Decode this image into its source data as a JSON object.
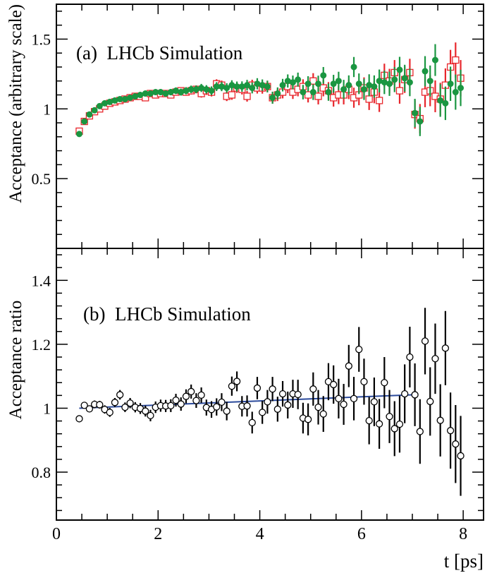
{
  "figure": {
    "xlabel": "t [ps]",
    "x_ticks": [
      0,
      2,
      4,
      6,
      8
    ]
  },
  "chart_data": [
    {
      "type": "scatter",
      "panel_label": "(a)  LHCb Simulation",
      "ylabel": "Acceptance (arbitrary scale)",
      "xlabel": "t [ps]",
      "xlim": [
        0,
        8.4
      ],
      "ylim": [
        0,
        1.75
      ],
      "y_ticks": [
        0.5,
        1,
        1.5
      ],
      "y_tick_labels": [
        "0.5",
        "1",
        "1.5"
      ],
      "colors": {
        "open_squares": "#e8262c",
        "filled_circles": "#1a9641"
      },
      "series": [
        {
          "marker": "open-square",
          "x": [
            0.45,
            0.55,
            0.65,
            0.75,
            0.85,
            0.95,
            1.05,
            1.15,
            1.25,
            1.35,
            1.45,
            1.55,
            1.65,
            1.75,
            1.85,
            1.95,
            2.05,
            2.15,
            2.25,
            2.35,
            2.45,
            2.55,
            2.65,
            2.75,
            2.85,
            2.95,
            3.05,
            3.15,
            3.25,
            3.35,
            3.45,
            3.55,
            3.65,
            3.75,
            3.85,
            3.95,
            4.05,
            4.15,
            4.25,
            4.35,
            4.45,
            4.55,
            4.65,
            4.75,
            4.85,
            4.95,
            5.05,
            5.15,
            5.25,
            5.35,
            5.45,
            5.55,
            5.65,
            5.75,
            5.85,
            5.95,
            6.05,
            6.15,
            6.25,
            6.35,
            6.45,
            6.55,
            6.65,
            6.75,
            6.85,
            6.95,
            7.05,
            7.15,
            7.25,
            7.35,
            7.45,
            7.55,
            7.65,
            7.75,
            7.85,
            7.95
          ],
          "y": [
            0.84,
            0.91,
            0.95,
            0.98,
            1.0,
            1.02,
            1.04,
            1.05,
            1.06,
            1.07,
            1.08,
            1.09,
            1.09,
            1.08,
            1.11,
            1.1,
            1.11,
            1.11,
            1.1,
            1.12,
            1.13,
            1.12,
            1.13,
            1.14,
            1.11,
            1.13,
            1.12,
            1.18,
            1.17,
            1.09,
            1.1,
            1.15,
            1.14,
            1.09,
            1.17,
            1.15,
            1.15,
            1.16,
            1.08,
            1.1,
            1.12,
            1.16,
            1.12,
            1.14,
            1.16,
            1.1,
            1.2,
            1.09,
            1.15,
            1.13,
            1.08,
            1.1,
            1.1,
            1.14,
            1.08,
            1.1,
            1.15,
            1.07,
            1.12,
            1.06,
            1.24,
            1.2,
            1.26,
            1.13,
            1.21,
            1.26,
            0.96,
            0.93,
            1.12,
            1.13,
            1.09,
            1.07,
            1.17,
            1.3,
            1.35,
            1.22
          ],
          "yerr": [
            0.005,
            0.006,
            0.007,
            0.008,
            0.009,
            0.01,
            0.011,
            0.012,
            0.013,
            0.014,
            0.015,
            0.016,
            0.017,
            0.018,
            0.019,
            0.02,
            0.021,
            0.022,
            0.023,
            0.024,
            0.025,
            0.026,
            0.027,
            0.028,
            0.029,
            0.03,
            0.031,
            0.032,
            0.033,
            0.034,
            0.035,
            0.036,
            0.037,
            0.038,
            0.039,
            0.04,
            0.041,
            0.042,
            0.043,
            0.044,
            0.045,
            0.047,
            0.049,
            0.05,
            0.052,
            0.054,
            0.056,
            0.058,
            0.06,
            0.062,
            0.064,
            0.066,
            0.068,
            0.07,
            0.072,
            0.074,
            0.076,
            0.078,
            0.08,
            0.082,
            0.084,
            0.087,
            0.09,
            0.093,
            0.096,
            0.099,
            0.102,
            0.105,
            0.108,
            0.111,
            0.114,
            0.117,
            0.12,
            0.123,
            0.126,
            0.13
          ]
        },
        {
          "marker": "filled-circle",
          "x": [
            0.45,
            0.55,
            0.65,
            0.75,
            0.85,
            0.95,
            1.05,
            1.15,
            1.25,
            1.35,
            1.45,
            1.55,
            1.65,
            1.75,
            1.85,
            1.95,
            2.05,
            2.15,
            2.25,
            2.35,
            2.45,
            2.55,
            2.65,
            2.75,
            2.85,
            2.95,
            3.05,
            3.15,
            3.25,
            3.35,
            3.45,
            3.55,
            3.65,
            3.75,
            3.85,
            3.95,
            4.05,
            4.15,
            4.25,
            4.35,
            4.45,
            4.55,
            4.65,
            4.75,
            4.85,
            4.95,
            5.05,
            5.15,
            5.25,
            5.35,
            5.45,
            5.55,
            5.65,
            5.75,
            5.85,
            5.95,
            6.05,
            6.15,
            6.25,
            6.35,
            6.45,
            6.55,
            6.65,
            6.75,
            6.85,
            6.95,
            7.05,
            7.15,
            7.25,
            7.35,
            7.45,
            7.55,
            7.65,
            7.75,
            7.85,
            7.95
          ],
          "y": [
            0.82,
            0.91,
            0.96,
            0.99,
            1.02,
            1.04,
            1.05,
            1.06,
            1.07,
            1.07,
            1.08,
            1.09,
            1.1,
            1.11,
            1.11,
            1.12,
            1.12,
            1.11,
            1.12,
            1.13,
            1.12,
            1.13,
            1.14,
            1.14,
            1.15,
            1.14,
            1.13,
            1.16,
            1.16,
            1.15,
            1.17,
            1.16,
            1.16,
            1.17,
            1.15,
            1.18,
            1.17,
            1.16,
            1.08,
            1.11,
            1.17,
            1.2,
            1.19,
            1.21,
            1.12,
            1.18,
            1.12,
            1.18,
            1.24,
            1.12,
            1.18,
            1.2,
            1.14,
            1.17,
            1.3,
            1.18,
            1.14,
            1.17,
            1.16,
            1.2,
            1.19,
            1.18,
            1.21,
            1.28,
            1.22,
            1.19,
            0.97,
            0.91,
            1.27,
            1.2,
            1.35,
            1.06,
            1.04,
            1.18,
            1.12,
            1.15
          ],
          "yerr": [
            0.005,
            0.006,
            0.007,
            0.008,
            0.009,
            0.01,
            0.011,
            0.012,
            0.013,
            0.014,
            0.015,
            0.016,
            0.017,
            0.018,
            0.019,
            0.02,
            0.021,
            0.022,
            0.023,
            0.024,
            0.025,
            0.026,
            0.027,
            0.028,
            0.029,
            0.03,
            0.031,
            0.032,
            0.033,
            0.034,
            0.035,
            0.036,
            0.037,
            0.038,
            0.039,
            0.04,
            0.041,
            0.042,
            0.043,
            0.044,
            0.045,
            0.047,
            0.049,
            0.05,
            0.052,
            0.054,
            0.056,
            0.058,
            0.06,
            0.062,
            0.064,
            0.066,
            0.068,
            0.07,
            0.072,
            0.074,
            0.076,
            0.078,
            0.08,
            0.082,
            0.084,
            0.087,
            0.09,
            0.093,
            0.096,
            0.099,
            0.102,
            0.105,
            0.108,
            0.111,
            0.114,
            0.117,
            0.12,
            0.123,
            0.126,
            0.13
          ]
        }
      ]
    },
    {
      "type": "scatter",
      "panel_label": "(b)  LHCb Simulation",
      "ylabel": "Acceptance ratio",
      "xlabel": "t [ps]",
      "xlim": [
        0,
        8.4
      ],
      "ylim": [
        0.65,
        1.5
      ],
      "y_ticks": [
        0.8,
        1,
        1.2,
        1.4
      ],
      "y_tick_labels": [
        "0.8",
        "1",
        "1.2",
        "1.4"
      ],
      "colors": {
        "points": "#000000",
        "fit_line": "#2b4a9b"
      },
      "series": [
        {
          "marker": "open-circle",
          "x": [
            0.45,
            0.55,
            0.65,
            0.75,
            0.85,
            0.95,
            1.05,
            1.15,
            1.25,
            1.35,
            1.45,
            1.55,
            1.65,
            1.75,
            1.85,
            1.95,
            2.05,
            2.15,
            2.25,
            2.35,
            2.45,
            2.55,
            2.65,
            2.75,
            2.85,
            2.95,
            3.05,
            3.15,
            3.25,
            3.35,
            3.45,
            3.55,
            3.65,
            3.75,
            3.85,
            3.95,
            4.05,
            4.15,
            4.25,
            4.35,
            4.45,
            4.55,
            4.65,
            4.75,
            4.85,
            4.95,
            5.05,
            5.15,
            5.25,
            5.35,
            5.45,
            5.55,
            5.65,
            5.75,
            5.85,
            5.95,
            6.05,
            6.15,
            6.25,
            6.35,
            6.45,
            6.55,
            6.65,
            6.75,
            6.85,
            6.95,
            7.05,
            7.15,
            7.25,
            7.35,
            7.45,
            7.55,
            7.65,
            7.75,
            7.85,
            7.95
          ],
          "y": [
            0.967,
            1.009,
            0.998,
            1.012,
            1.011,
            0.996,
            0.987,
            1.018,
            1.042,
            1.003,
            1.016,
            1.003,
            0.999,
            0.991,
            0.977,
            1.003,
            1.008,
            1.007,
            1.008,
            1.025,
            1.013,
            1.037,
            1.052,
            1.024,
            1.041,
            1.002,
            0.996,
            1.004,
            1.019,
            0.991,
            1.069,
            1.084,
            1.006,
            1.007,
            0.955,
            1.063,
            0.987,
            1.02,
            1.06,
            0.997,
            1.045,
            1.01,
            1.045,
            1.043,
            0.969,
            0.965,
            1.06,
            1.003,
            0.982,
            1.083,
            1.074,
            1.03,
            1.012,
            1.132,
            1.03,
            1.184,
            1.083,
            0.961,
            1.02,
            0.951,
            1.08,
            0.974,
            0.936,
            0.95,
            1.045,
            1.16,
            1.042,
            0.927,
            1.21,
            1.021,
            1.155,
            0.962,
            1.188,
            0.93,
            0.888,
            0.851
          ],
          "yerr": [
            0.008,
            0.01,
            0.01,
            0.012,
            0.012,
            0.013,
            0.014,
            0.014,
            0.015,
            0.015,
            0.016,
            0.016,
            0.017,
            0.017,
            0.018,
            0.018,
            0.019,
            0.019,
            0.02,
            0.02,
            0.021,
            0.022,
            0.022,
            0.023,
            0.024,
            0.025,
            0.026,
            0.027,
            0.028,
            0.029,
            0.03,
            0.031,
            0.032,
            0.033,
            0.034,
            0.035,
            0.036,
            0.037,
            0.038,
            0.039,
            0.04,
            0.042,
            0.044,
            0.046,
            0.048,
            0.05,
            0.052,
            0.054,
            0.056,
            0.058,
            0.06,
            0.062,
            0.064,
            0.066,
            0.068,
            0.07,
            0.072,
            0.074,
            0.076,
            0.078,
            0.08,
            0.083,
            0.086,
            0.089,
            0.092,
            0.095,
            0.098,
            0.101,
            0.104,
            0.107,
            0.11,
            0.113,
            0.116,
            0.119,
            0.122,
            0.125
          ]
        }
      ],
      "fit_line": {
        "x": [
          0.45,
          7.0
        ],
        "y": [
          1.0,
          1.042
        ]
      }
    }
  ]
}
